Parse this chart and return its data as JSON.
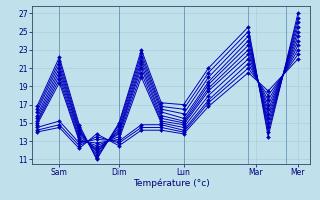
{
  "xlabel": "Température (°c)",
  "bg_color": "#c0e0ec",
  "line_color": "#0000bb",
  "marker": "D",
  "markersize": 2.0,
  "linewidth": 0.7,
  "ylim": [
    10.5,
    27.8
  ],
  "yticks": [
    11,
    13,
    15,
    17,
    19,
    21,
    23,
    25,
    27
  ],
  "day_labels": [
    "Sam",
    "Dim",
    "Lun",
    "Mar",
    "Mer"
  ],
  "grid_color": "#a8ccd8",
  "trajectories": [
    [
      16.8,
      22.2,
      14.8,
      11.0,
      15.0,
      23.0,
      17.2,
      17.0,
      21.0,
      25.5,
      13.5,
      27.0
    ],
    [
      16.5,
      21.8,
      14.5,
      11.2,
      14.8,
      22.6,
      16.8,
      16.5,
      20.5,
      25.0,
      14.0,
      26.5
    ],
    [
      16.2,
      21.4,
      14.2,
      11.5,
      14.5,
      22.2,
      16.5,
      16.0,
      20.0,
      24.5,
      14.5,
      26.0
    ],
    [
      15.8,
      21.0,
      14.0,
      11.8,
      14.2,
      21.8,
      16.2,
      15.5,
      19.5,
      24.0,
      15.0,
      25.5
    ],
    [
      15.5,
      20.6,
      13.8,
      12.0,
      14.0,
      21.4,
      15.8,
      15.2,
      19.2,
      23.5,
      15.5,
      25.0
    ],
    [
      15.2,
      20.2,
      13.5,
      12.2,
      13.8,
      21.0,
      15.5,
      15.0,
      18.8,
      23.0,
      16.0,
      24.5
    ],
    [
      15.0,
      19.8,
      13.2,
      12.5,
      13.5,
      20.5,
      15.2,
      14.8,
      18.5,
      22.5,
      16.5,
      24.0
    ],
    [
      14.8,
      19.4,
      13.0,
      12.8,
      13.2,
      20.0,
      15.0,
      14.5,
      18.0,
      22.0,
      17.0,
      23.5
    ],
    [
      14.5,
      15.2,
      12.8,
      13.2,
      13.0,
      14.8,
      14.8,
      14.2,
      17.5,
      21.5,
      17.5,
      23.0
    ],
    [
      14.2,
      14.8,
      12.5,
      13.5,
      12.8,
      14.5,
      14.5,
      14.0,
      17.2,
      21.0,
      18.0,
      22.5
    ],
    [
      14.0,
      14.5,
      12.2,
      13.8,
      12.5,
      14.2,
      14.2,
      13.8,
      16.8,
      20.5,
      18.5,
      22.0
    ]
  ],
  "x_times": [
    0.0,
    0.9,
    1.7,
    2.4,
    3.3,
    4.2,
    5.0,
    5.9,
    6.9,
    8.5,
    9.3,
    10.5
  ],
  "day_tick_positions": [
    0.9,
    3.3,
    5.9,
    8.8,
    10.5
  ],
  "day_sep_positions": [
    0.9,
    3.3,
    5.9,
    8.5,
    10.0
  ],
  "xlim": [
    -0.2,
    11.0
  ]
}
